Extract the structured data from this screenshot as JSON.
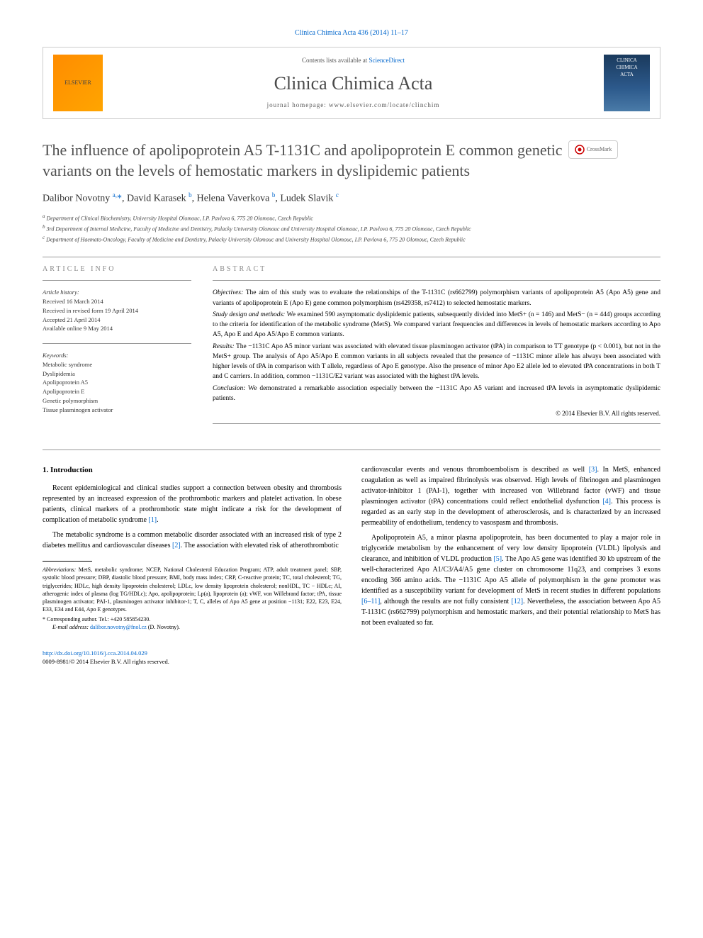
{
  "top_link": "Clinica Chimica Acta 436 (2014) 11–17",
  "header": {
    "contents_text": "Contents lists available at ",
    "contents_link": "ScienceDirect",
    "journal_name": "Clinica Chimica Acta",
    "homepage_label": "journal homepage: ",
    "homepage_url": "www.elsevier.com/locate/clinchim",
    "elsevier": "ELSEVIER",
    "cover_line1": "CLINICA",
    "cover_line2": "CHIMICA",
    "cover_line3": "ACTA"
  },
  "crossmark": "CrossMark",
  "title": "The influence of apolipoprotein A5 T-1131C and apolipoprotein E common genetic variants on the levels of hemostatic markers in dyslipidemic patients",
  "authors_html": "Dalibor Novotny <sup>a,</sup><span class='ast'>*</span>, David Karasek <sup>b</sup>, Helena Vaverkova <sup>b</sup>, Ludek Slavik <sup>c</sup>",
  "affiliations": {
    "a": "Department of Clinical Biochemistry, University Hospital Olomouc, I.P. Pavlova 6, 775 20 Olomouc, Czech Republic",
    "b": "3rd Department of Internal Medicine, Faculty of Medicine and Dentistry, Palacky University Olomouc and University Hospital Olomouc, I.P. Pavlova 6, 775 20 Olomouc, Czech Republic",
    "c": "Department of Haemato-Oncology, Faculty of Medicine and Dentistry, Palacky University Olomouc and University Hospital Olomouc, I.P. Pavlova 6, 775 20 Olomouc, Czech Republic"
  },
  "article_info": {
    "label": "ARTICLE INFO",
    "history_label": "Article history:",
    "history": [
      "Received 16 March 2014",
      "Received in revised form 19 April 2014",
      "Accepted 21 April 2014",
      "Available online 9 May 2014"
    ],
    "keywords_label": "Keywords:",
    "keywords": [
      "Metabolic syndrome",
      "Dyslipidemia",
      "Apolipoprotein A5",
      "Apolipoprotein E",
      "Genetic polymorphism",
      "Tissue plasminogen activator"
    ]
  },
  "abstract": {
    "label": "ABSTRACT",
    "objectives_label": "Objectives:",
    "objectives": " The aim of this study was to evaluate the relationships of the T-1131C (rs662799) polymorphism variants of apolipoprotein A5 (Apo A5) gene and variants of apolipoprotein E (Apo E) gene common polymorphism (rs429358, rs7412) to selected hemostatic markers.",
    "design_label": "Study design and methods:",
    "design": " We examined 590 asymptomatic dyslipidemic patients, subsequently divided into MetS+ (n = 146) and MetS− (n = 444) groups according to the criteria for identification of the metabolic syndrome (MetS). We compared variant frequencies and differences in levels of hemostatic markers according to Apo A5, Apo E and Apo A5/Apo E common variants.",
    "results_label": "Results:",
    "results": " The −1131C Apo A5 minor variant was associated with elevated tissue plasminogen activator (tPA) in comparison to TT genotype (p < 0.001), but not in the MetS+ group. The analysis of Apo A5/Apo E common variants in all subjects revealed that the presence of −1131C minor allele has always been associated with higher levels of tPA in comparison with T allele, regardless of Apo E genotype. Also the presence of minor Apo E2 allele led to elevated tPA concentrations in both T and C carriers. In addition, common −1131C/E2 variant was associated with the highest tPA levels.",
    "conclusion_label": "Conclusion:",
    "conclusion": " We demonstrated a remarkable association especially between the −1131C Apo A5 variant and increased tPA levels in asymptomatic dyslipidemic patients.",
    "copyright": "© 2014 Elsevier B.V. All rights reserved."
  },
  "body": {
    "section_1_title": "1. Introduction",
    "para_1": "Recent epidemiological and clinical studies support a connection between obesity and thrombosis represented by an increased expression of the prothrombotic markers and platelet activation. In obese patients, clinical markers of a prothrombotic state might indicate a risk for the development of complication of metabolic syndrome ",
    "cite_1": "[1]",
    "para_1_end": ".",
    "para_2": "The metabolic syndrome is a common metabolic disorder associated with an increased risk of type 2 diabetes mellitus and cardiovascular diseases ",
    "cite_2": "[2]",
    "para_2_mid": ". The association with elevated risk of atherothrombotic",
    "para_3_a": "cardiovascular events and venous thromboembolism is described as well ",
    "cite_3": "[3]",
    "para_3_b": ". In MetS, enhanced coagulation as well as impaired fibrinolysis was observed. High levels of fibrinogen and plasminogen activator-inhibitor 1 (PAI-1), together with increased von Willebrand factor (vWF) and tissue plasminogen activator (tPA) concentrations could reflect endothelial dysfunction ",
    "cite_4": "[4]",
    "para_3_c": ". This process is regarded as an early step in the development of atherosclerosis, and is characterized by an increased permeability of endothelium, tendency to vasospasm and thrombosis.",
    "para_4_a": "Apolipoprotein A5, a minor plasma apolipoprotein, has been documented to play a major role in triglyceride metabolism by the enhancement of very low density lipoprotein (VLDL) lipolysis and clearance, and inhibition of VLDL production ",
    "cite_5": "[5]",
    "para_4_b": ". The Apo A5 gene was identified 30 kb upstream of the well-characterized Apo A1/C3/A4/A5 gene cluster on chromosome 11q23, and comprises 3 exons encoding 366 amino acids. The −1131C Apo A5 allele of polymorphism in the gene promoter was identified as a susceptibility variant for development of MetS in recent studies in different populations ",
    "cite_6_11": "[6–11]",
    "para_4_c": ", although the results are not fully consistent ",
    "cite_12": "[12]",
    "para_4_d": ". Nevertheless, the association between Apo A5 T-1131C (rs662799) polymorphism and hemostatic markers, and their potential relationship to MetS has not been evaluated so far."
  },
  "footnotes": {
    "abbrev_label": "Abbreviations:",
    "abbrev": " MetS, metabolic syndrome; NCEP, National Cholesterol Education Program; ATP, adult treatment panel; SBP, systolic blood pressure; DBP, diastolic blood pressure; BMI, body mass index; CRP, C-reactive protein; TC, total cholesterol; TG, triglycerides; HDLc, high density lipoprotein cholesterol; LDLc, low density lipoprotein cholesterol; nonHDL, TC − HDLc; AI, atherogenic index of plasma (log TG/HDLc); Apo, apolipoprotein; Lp(a), lipoprotein (a); vWF, von Willebrand factor; tPA, tissue plasminogen activator; PAI-1, plasminogen activator inhibitor-1; T, C, alleles of Apo A5 gene at position −1131; E22, E23, E24, E33, E34 and E44, Apo E genotypes.",
    "corr_label": "* Corresponding author. Tel.: +420 585854230.",
    "email_label": "E-mail address: ",
    "email": "dalibor.novotny@fnol.cz",
    "email_suffix": " (D. Novotny)."
  },
  "bottom": {
    "doi": "http://dx.doi.org/10.1016/j.cca.2014.04.029",
    "issn": "0009-8981/© 2014 Elsevier B.V. All rights reserved."
  }
}
